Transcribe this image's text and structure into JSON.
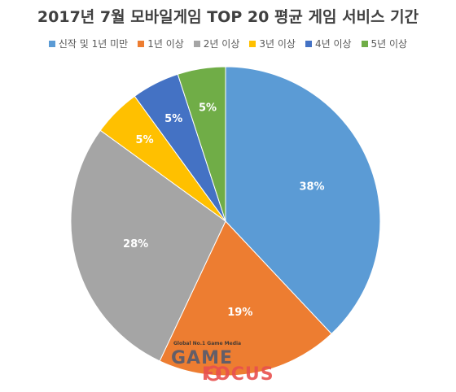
{
  "chart_data": {
    "type": "pie",
    "title": "2017년 7월 모바일게임 TOP 20 평균 게임 서비스 기간",
    "categories": [
      "신작 및 1년 미만",
      "1년 이상",
      "2년 이상",
      "3년 이상",
      "4년 이상",
      "5년 이상"
    ],
    "values": [
      38,
      19,
      28,
      5,
      5,
      5
    ],
    "data_labels": [
      "38%",
      "19%",
      "28%",
      "5%",
      "5%",
      "5%"
    ],
    "colors": [
      "#5b9bd5",
      "#ed7d31",
      "#a5a5a5",
      "#ffc000",
      "#4472c4",
      "#70ad47"
    ],
    "legend_position": "top",
    "start_angle": "12 o'clock",
    "direction": "clockwise"
  },
  "watermark": {
    "tagline": "Global No.1 Game Media",
    "brand_top": "GAME",
    "brand_bottom": "FOCUS"
  }
}
